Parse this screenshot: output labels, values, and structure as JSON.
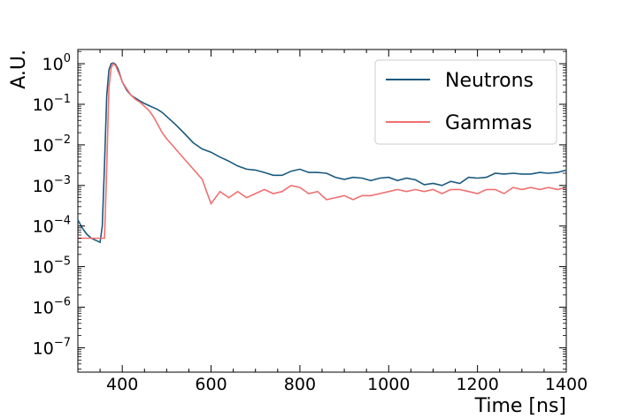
{
  "chart_data": {
    "type": "line",
    "xlabel": "Time [ns]",
    "ylabel": "A.U.",
    "xlim": [
      300,
      1400
    ],
    "ylim_log10": [
      -7.6,
      0.35
    ],
    "yscale": "log",
    "grid": false,
    "legend_position": "top-right",
    "x_ticks": [
      400,
      600,
      800,
      1000,
      1200,
      1400
    ],
    "x_tick_labels": [
      "400",
      "600",
      "800",
      "1000",
      "1200",
      "1400"
    ],
    "y_ticks_log10": [
      0,
      -1,
      -2,
      -3,
      -4,
      -5,
      -6,
      -7
    ],
    "y_tick_labels": [
      {
        "base": "10",
        "exp": "0"
      },
      {
        "base": "10",
        "exp": "−1"
      },
      {
        "base": "10",
        "exp": "−2"
      },
      {
        "base": "10",
        "exp": "−3"
      },
      {
        "base": "10",
        "exp": "−4"
      },
      {
        "base": "10",
        "exp": "−5"
      },
      {
        "base": "10",
        "exp": "−6"
      },
      {
        "base": "10",
        "exp": "−7"
      }
    ],
    "series": [
      {
        "name": "Neutrons",
        "color": "#1a5a7e",
        "x": [
          300,
          310,
          320,
          330,
          340,
          350,
          355,
          360,
          365,
          370,
          375,
          380,
          385,
          390,
          395,
          400,
          410,
          420,
          430,
          440,
          450,
          460,
          470,
          480,
          490,
          500,
          520,
          540,
          560,
          580,
          600,
          620,
          640,
          660,
          680,
          700,
          720,
          740,
          760,
          780,
          800,
          820,
          840,
          860,
          880,
          900,
          920,
          940,
          960,
          980,
          1000,
          1020,
          1040,
          1060,
          1080,
          1100,
          1120,
          1140,
          1160,
          1180,
          1200,
          1220,
          1240,
          1260,
          1280,
          1300,
          1320,
          1340,
          1360,
          1380,
          1400
        ],
        "y_log10": [
          -3.85,
          -4.05,
          -4.2,
          -4.3,
          -4.35,
          -4.4,
          -4.0,
          -2.5,
          -0.8,
          -0.15,
          0.0,
          0.02,
          -0.02,
          -0.12,
          -0.28,
          -0.45,
          -0.65,
          -0.78,
          -0.85,
          -0.92,
          -0.98,
          -1.03,
          -1.08,
          -1.13,
          -1.2,
          -1.3,
          -1.5,
          -1.72,
          -1.95,
          -2.1,
          -2.18,
          -2.3,
          -2.4,
          -2.52,
          -2.6,
          -2.62,
          -2.68,
          -2.75,
          -2.75,
          -2.65,
          -2.6,
          -2.68,
          -2.68,
          -2.7,
          -2.8,
          -2.85,
          -2.8,
          -2.82,
          -2.88,
          -2.82,
          -2.8,
          -2.88,
          -2.82,
          -2.86,
          -2.98,
          -2.95,
          -3.0,
          -2.9,
          -2.95,
          -2.8,
          -2.82,
          -2.8,
          -2.7,
          -2.72,
          -2.7,
          -2.72,
          -2.72,
          -2.68,
          -2.7,
          -2.68,
          -2.62
        ]
      },
      {
        "name": "Gammas",
        "color": "#f07070",
        "x": [
          300,
          360,
          365,
          370,
          375,
          380,
          385,
          390,
          395,
          400,
          410,
          420,
          430,
          440,
          450,
          460,
          470,
          480,
          490,
          500,
          520,
          540,
          560,
          580,
          590,
          600,
          620,
          640,
          660,
          680,
          700,
          720,
          740,
          760,
          780,
          800,
          820,
          840,
          860,
          880,
          900,
          920,
          940,
          960,
          980,
          1000,
          1020,
          1040,
          1060,
          1080,
          1100,
          1120,
          1140,
          1160,
          1180,
          1200,
          1220,
          1240,
          1260,
          1280,
          1300,
          1320,
          1340,
          1360,
          1380,
          1400
        ],
        "y_log10": [
          -4.3,
          -4.3,
          -2.6,
          -0.6,
          -0.1,
          0.0,
          -0.05,
          -0.18,
          -0.3,
          -0.45,
          -0.62,
          -0.78,
          -0.88,
          -0.95,
          -1.05,
          -1.15,
          -1.3,
          -1.5,
          -1.7,
          -1.85,
          -2.1,
          -2.35,
          -2.6,
          -2.85,
          -3.15,
          -3.45,
          -3.15,
          -3.3,
          -3.15,
          -3.3,
          -3.2,
          -3.1,
          -3.2,
          -3.15,
          -3.0,
          -3.05,
          -3.2,
          -3.15,
          -3.35,
          -3.3,
          -3.25,
          -3.35,
          -3.25,
          -3.25,
          -3.2,
          -3.15,
          -3.1,
          -3.15,
          -3.1,
          -3.15,
          -3.1,
          -3.2,
          -3.1,
          -3.1,
          -3.15,
          -3.2,
          -3.1,
          -3.1,
          -3.2,
          -3.05,
          -3.1,
          -3.05,
          -3.1,
          -3.05,
          -3.1,
          -3.05
        ]
      }
    ]
  }
}
